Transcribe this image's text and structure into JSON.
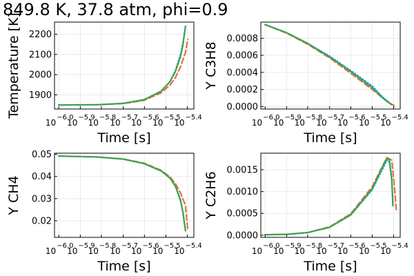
{
  "title": "849.8 K, 37.8 atm, phi=0.9",
  "colors": {
    "series1": "#009AFA",
    "series2": "#E26F46",
    "series3": "#3DA44D",
    "grid": "#e9e9e9",
    "axis": "#000000"
  },
  "chart_data": [
    {
      "type": "line",
      "xlabel": "Time [s]",
      "ylabel": "Temperature [K]",
      "x_scale": "log10",
      "xlim": [
        9.55e-07,
        4.27e-06
      ],
      "ylim": [
        1830,
        2260
      ],
      "xticks": [
        {
          "base": "10",
          "exp": "−6.0",
          "value": 1e-06
        },
        {
          "base": "10",
          "exp": "−5.9",
          "value": 1.26e-06
        },
        {
          "base": "10",
          "exp": "−5.8",
          "value": 1.58e-06
        },
        {
          "base": "10",
          "exp": "−5.7",
          "value": 2e-06
        },
        {
          "base": "10",
          "exp": "−5.6",
          "value": 2.51e-06
        },
        {
          "base": "10",
          "exp": "−5.5",
          "value": 3.16e-06
        },
        {
          "base": "10",
          "exp": "−5.4",
          "value": 3.98e-06
        }
      ],
      "yticks": [
        {
          "label": "1900",
          "value": 1900
        },
        {
          "label": "2000",
          "value": 2000
        },
        {
          "label": "2100",
          "value": 2100
        },
        {
          "label": "2200",
          "value": 2200
        }
      ],
      "grid": true,
      "series": [
        {
          "style": "dotted",
          "points": [
            [
              1e-06,
              1850
            ],
            [
              1.5e-06,
              1851
            ],
            [
              2e-06,
              1858
            ],
            [
              2.5e-06,
              1876
            ],
            [
              3e-06,
              1918
            ],
            [
              3.3e-06,
              1965
            ],
            [
              3.5e-06,
              2020
            ],
            [
              3.7e-06,
              2100
            ],
            [
              3.8e-06,
              2160
            ],
            [
              3.9e-06,
              2235
            ]
          ]
        },
        {
          "style": "dashed",
          "points": [
            [
              1e-06,
              1850
            ],
            [
              1.5e-06,
              1851
            ],
            [
              2e-06,
              1857
            ],
            [
              2.5e-06,
              1873
            ],
            [
              3e-06,
              1910
            ],
            [
              3.3e-06,
              1948
            ],
            [
              3.5e-06,
              1985
            ],
            [
              3.7e-06,
              2040
            ],
            [
              3.9e-06,
              2110
            ],
            [
              4e-06,
              2175
            ]
          ]
        },
        {
          "style": "solid",
          "points": [
            [
              1e-06,
              1850
            ],
            [
              1.5e-06,
              1851
            ],
            [
              2e-06,
              1858
            ],
            [
              2.5e-06,
              1876
            ],
            [
              3e-06,
              1918
            ],
            [
              3.3e-06,
              1965
            ],
            [
              3.5e-06,
              2015
            ],
            [
              3.7e-06,
              2090
            ],
            [
              3.8e-06,
              2150
            ],
            [
              3.9e-06,
              2240
            ]
          ]
        }
      ]
    },
    {
      "type": "line",
      "xlabel": "Time [s]",
      "ylabel": "Y C3H8",
      "x_scale": "log10",
      "xlim": [
        9.55e-07,
        4.27e-06
      ],
      "ylim": [
        -3e-05,
        0.00099
      ],
      "xticks": [
        {
          "base": "10",
          "exp": "−6.0",
          "value": 1e-06
        },
        {
          "base": "10",
          "exp": "−5.9",
          "value": 1.26e-06
        },
        {
          "base": "10",
          "exp": "−5.8",
          "value": 1.58e-06
        },
        {
          "base": "10",
          "exp": "−5.7",
          "value": 2e-06
        },
        {
          "base": "10",
          "exp": "−5.6",
          "value": 2.51e-06
        },
        {
          "base": "10",
          "exp": "−5.5",
          "value": 3.16e-06
        },
        {
          "base": "10",
          "exp": "−5.4",
          "value": 3.98e-06
        }
      ],
      "yticks": [
        {
          "label": "0.0000",
          "value": 0
        },
        {
          "label": "0.0002",
          "value": 0.0002
        },
        {
          "label": "0.0004",
          "value": 0.0004
        },
        {
          "label": "0.0006",
          "value": 0.0006
        },
        {
          "label": "0.0008",
          "value": 0.0008
        }
      ],
      "grid": true,
      "series": [
        {
          "style": "dotted",
          "points": [
            [
              1e-06,
              0.00096
            ],
            [
              1.26e-06,
              0.000865
            ],
            [
              1.58e-06,
              0.00074
            ],
            [
              2e-06,
              0.00059
            ],
            [
              2.51e-06,
              0.00042
            ],
            [
              3.16e-06,
              0.00024
            ],
            [
              3.5e-06,
              0.00012
            ],
            [
              3.7e-06,
              7e-05
            ],
            [
              3.9e-06,
              2e-05
            ]
          ]
        },
        {
          "style": "dashed",
          "points": [
            [
              1e-06,
              0.00096
            ],
            [
              1.26e-06,
              0.00086
            ],
            [
              1.58e-06,
              0.00073
            ],
            [
              2e-06,
              0.00057
            ],
            [
              2.51e-06,
              0.00039
            ],
            [
              3.16e-06,
              0.0002
            ],
            [
              3.5e-06,
              0.00011
            ],
            [
              3.7e-06,
              6e-05
            ],
            [
              4e-06,
              1e-05
            ]
          ]
        },
        {
          "style": "solid",
          "points": [
            [
              1e-06,
              0.00096
            ],
            [
              1.26e-06,
              0.000865
            ],
            [
              1.58e-06,
              0.00074
            ],
            [
              2e-06,
              0.00058
            ],
            [
              2.51e-06,
              0.00041
            ],
            [
              3.16e-06,
              0.00022
            ],
            [
              3.5e-06,
              0.00011
            ],
            [
              3.7e-06,
              6e-05
            ],
            [
              3.9e-06,
              2e-05
            ]
          ]
        }
      ]
    },
    {
      "type": "line",
      "xlabel": "Time [s]",
      "ylabel": "Y CH4",
      "x_scale": "log10",
      "xlim": [
        9.55e-07,
        4.27e-06
      ],
      "ylim": [
        0.0125,
        0.0505
      ],
      "xticks": [
        {
          "base": "10",
          "exp": "−6.0",
          "value": 1e-06
        },
        {
          "base": "10",
          "exp": "−5.9",
          "value": 1.26e-06
        },
        {
          "base": "10",
          "exp": "−5.8",
          "value": 1.58e-06
        },
        {
          "base": "10",
          "exp": "−5.7",
          "value": 2e-06
        },
        {
          "base": "10",
          "exp": "−5.6",
          "value": 2.51e-06
        },
        {
          "base": "10",
          "exp": "−5.5",
          "value": 3.16e-06
        },
        {
          "base": "10",
          "exp": "−5.4",
          "value": 3.98e-06
        }
      ],
      "yticks": [
        {
          "label": "0.02",
          "value": 0.02
        },
        {
          "label": "0.03",
          "value": 0.03
        },
        {
          "label": "0.04",
          "value": 0.04
        },
        {
          "label": "0.05",
          "value": 0.05
        }
      ],
      "grid": true,
      "series": [
        {
          "style": "dotted",
          "points": [
            [
              1e-06,
              0.0492
            ],
            [
              1.5e-06,
              0.0488
            ],
            [
              2e-06,
              0.0478
            ],
            [
              2.5e-06,
              0.0458
            ],
            [
              3e-06,
              0.0425
            ],
            [
              3.3e-06,
              0.0393
            ],
            [
              3.5e-06,
              0.0358
            ],
            [
              3.7e-06,
              0.0295
            ],
            [
              3.8e-06,
              0.0238
            ],
            [
              3.9e-06,
              0.0155
            ]
          ]
        },
        {
          "style": "dashed",
          "points": [
            [
              1e-06,
              0.0492
            ],
            [
              1.5e-06,
              0.0488
            ],
            [
              2e-06,
              0.0479
            ],
            [
              2.5e-06,
              0.046
            ],
            [
              3e-06,
              0.0428
            ],
            [
              3.3e-06,
              0.0398
            ],
            [
              3.5e-06,
              0.0368
            ],
            [
              3.7e-06,
              0.0325
            ],
            [
              3.9e-06,
              0.027
            ],
            [
              4e-06,
              0.0155
            ]
          ]
        },
        {
          "style": "solid",
          "points": [
            [
              1e-06,
              0.0492
            ],
            [
              1.5e-06,
              0.0488
            ],
            [
              2e-06,
              0.0478
            ],
            [
              2.5e-06,
              0.0458
            ],
            [
              3e-06,
              0.0425
            ],
            [
              3.3e-06,
              0.0393
            ],
            [
              3.5e-06,
              0.0356
            ],
            [
              3.7e-06,
              0.029
            ],
            [
              3.8e-06,
              0.0235
            ],
            [
              3.9e-06,
              0.0155
            ]
          ]
        }
      ]
    },
    {
      "type": "line",
      "xlabel": "Time [s]",
      "ylabel": "Y C2H6",
      "x_scale": "log10",
      "xlim": [
        9.55e-07,
        4.27e-06
      ],
      "ylim": [
        -5e-05,
        0.00188
      ],
      "xticks": [
        {
          "base": "10",
          "exp": "−6.0",
          "value": 1e-06
        },
        {
          "base": "10",
          "exp": "−5.9",
          "value": 1.26e-06
        },
        {
          "base": "10",
          "exp": "−5.8",
          "value": 1.58e-06
        },
        {
          "base": "10",
          "exp": "−5.7",
          "value": 2e-06
        },
        {
          "base": "10",
          "exp": "−5.6",
          "value": 2.51e-06
        },
        {
          "base": "10",
          "exp": "−5.5",
          "value": 3.16e-06
        },
        {
          "base": "10",
          "exp": "−5.4",
          "value": 3.98e-06
        }
      ],
      "yticks": [
        {
          "label": "0.0000",
          "value": 0
        },
        {
          "label": "0.0005",
          "value": 0.0005
        },
        {
          "label": "0.0010",
          "value": 0.001
        },
        {
          "label": "0.0015",
          "value": 0.0015
        }
      ],
      "grid": true,
      "series": [
        {
          "style": "dotted",
          "points": [
            [
              1e-06,
              1e-05
            ],
            [
              1.26e-06,
              2e-05
            ],
            [
              1.58e-06,
              6e-05
            ],
            [
              2e-06,
              0.00018
            ],
            [
              2.51e-06,
              0.00046
            ],
            [
              3.16e-06,
              0.00104
            ],
            [
              3.5e-06,
              0.00148
            ],
            [
              3.7e-06,
              0.00172
            ],
            [
              3.8e-06,
              0.00168
            ],
            [
              3.9e-06,
              0.00125
            ],
            [
              3.95e-06,
              0.00065
            ]
          ]
        },
        {
          "style": "dashed",
          "points": [
            [
              1e-06,
              1e-05
            ],
            [
              1.26e-06,
              2e-05
            ],
            [
              1.58e-06,
              6e-05
            ],
            [
              2e-06,
              0.00019
            ],
            [
              2.51e-06,
              0.00049
            ],
            [
              3.16e-06,
              0.00111
            ],
            [
              3.5e-06,
              0.00155
            ],
            [
              3.7e-06,
              0.00178
            ],
            [
              3.9e-06,
              0.00172
            ],
            [
              4e-06,
              0.0012
            ],
            [
              4.1e-06,
              0.00055
            ]
          ]
        },
        {
          "style": "solid",
          "points": [
            [
              1e-06,
              1e-05
            ],
            [
              1.26e-06,
              2e-05
            ],
            [
              1.58e-06,
              6e-05
            ],
            [
              2e-06,
              0.00018
            ],
            [
              2.51e-06,
              0.00047
            ],
            [
              3.16e-06,
              0.00106
            ],
            [
              3.5e-06,
              0.00152
            ],
            [
              3.7e-06,
              0.00176
            ],
            [
              3.8e-06,
              0.00173
            ],
            [
              3.9e-06,
              0.0013
            ],
            [
              3.95e-06,
              0.00068
            ]
          ]
        }
      ]
    }
  ]
}
